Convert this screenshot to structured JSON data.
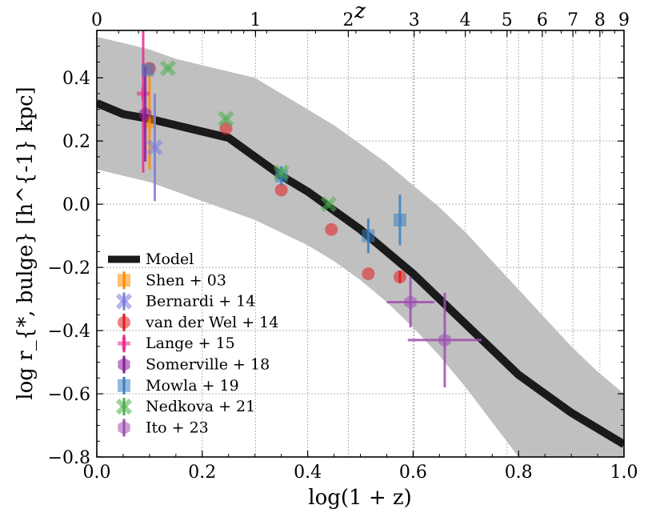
{
  "chart_data": {
    "type": "line",
    "title": "",
    "xlabel": "log(1 + z)",
    "ylabel": "log r_{*, bulge} [h^{-1} kpc]",
    "top_xlabel": "z",
    "xlim": [
      0.0,
      1.0
    ],
    "ylim": [
      -0.8,
      0.55
    ],
    "grid": true,
    "x_ticks": [
      0.0,
      0.2,
      0.4,
      0.6,
      0.8,
      1.0
    ],
    "x_tick_labels": [
      "0.0",
      "0.2",
      "0.4",
      "0.6",
      "0.8",
      "1.0"
    ],
    "y_ticks": [
      -0.8,
      -0.6,
      -0.4,
      -0.2,
      0.0,
      0.2,
      0.4
    ],
    "y_tick_labels": [
      "−0.8",
      "−0.6",
      "−0.4",
      "−0.2",
      "0.0",
      "0.2",
      "0.4"
    ],
    "top_ticks_z": [
      0,
      1,
      2,
      3,
      4,
      5,
      6,
      7,
      8,
      9
    ],
    "top_tick_labels": [
      "0",
      "1",
      "2",
      "3",
      "4",
      "5",
      "6",
      "7",
      "8",
      "9"
    ],
    "legend_location": "lower-left",
    "model": {
      "name": "Model",
      "color": "#1a1a1a",
      "x": [
        0.0,
        0.05,
        0.1,
        0.15,
        0.2,
        0.25,
        0.3,
        0.35,
        0.4,
        0.45,
        0.5,
        0.55,
        0.6,
        0.65,
        0.7,
        0.75,
        0.8,
        0.85,
        0.9,
        0.95,
        1.0
      ],
      "y": [
        0.32,
        0.285,
        0.27,
        0.25,
        0.23,
        0.21,
        0.15,
        0.09,
        0.04,
        -0.02,
        -0.08,
        -0.15,
        -0.22,
        -0.3,
        -0.38,
        -0.46,
        -0.54,
        -0.6,
        -0.66,
        -0.71,
        -0.76
      ],
      "band_upper": [
        0.53,
        0.51,
        0.49,
        0.46,
        0.44,
        0.42,
        0.4,
        0.35,
        0.3,
        0.25,
        0.19,
        0.13,
        0.06,
        -0.01,
        -0.09,
        -0.18,
        -0.27,
        -0.36,
        -0.45,
        -0.53,
        -0.6
      ],
      "band_lower": [
        0.11,
        0.09,
        0.07,
        0.04,
        0.01,
        -0.02,
        -0.05,
        -0.09,
        -0.13,
        -0.18,
        -0.24,
        -0.31,
        -0.39,
        -0.48,
        -0.58,
        -0.69,
        -0.8,
        -0.8,
        -0.8,
        -0.8,
        -0.8
      ]
    },
    "series": [
      {
        "name": "Shen + 03",
        "marker": "square",
        "color": "#ff8c00",
        "points": [
          {
            "x": 0.1,
            "y": 0.26,
            "yerr": 0.15,
            "xerr": 0.0
          }
        ]
      },
      {
        "name": "Bernardi + 14",
        "marker": "x",
        "color": "#7b7bdc",
        "points": [
          {
            "x": 0.11,
            "y": 0.18,
            "yerr": 0.17,
            "xerr": 0.0
          }
        ]
      },
      {
        "name": "van der Wel + 14",
        "marker": "circle",
        "color": "#e31a1c",
        "points": [
          {
            "x": 0.1,
            "y": 0.43,
            "yerr": 0.0,
            "xerr": 0.0
          },
          {
            "x": 0.245,
            "y": 0.24,
            "yerr": 0.0,
            "xerr": 0.0
          },
          {
            "x": 0.35,
            "y": 0.045,
            "yerr": 0.0,
            "xerr": 0.0
          },
          {
            "x": 0.445,
            "y": -0.08,
            "yerr": 0.0,
            "xerr": 0.0
          },
          {
            "x": 0.515,
            "y": -0.22,
            "yerr": 0.0,
            "xerr": 0.0
          },
          {
            "x": 0.575,
            "y": -0.23,
            "yerr": 0.02,
            "xerr": 0.0
          }
        ]
      },
      {
        "name": "Lange + 15",
        "marker": "plus",
        "color": "#e7298a",
        "points": [
          {
            "x": 0.088,
            "y": 0.35,
            "yerr": 0.25,
            "xerr": 0.0
          }
        ]
      },
      {
        "name": "Somerville + 18",
        "marker": "hexagon",
        "color": "#8a1a9b",
        "points": [
          {
            "x": 0.092,
            "y": 0.285,
            "yerr": 0.15,
            "xerr": 0.0
          }
        ]
      },
      {
        "name": "Mowla + 19",
        "marker": "square",
        "color": "#3a7fc1",
        "points": [
          {
            "x": 0.097,
            "y": 0.425,
            "yerr": 0.0,
            "xerr": 0.0
          },
          {
            "x": 0.35,
            "y": 0.09,
            "yerr": 0.03,
            "xerr": 0.0
          },
          {
            "x": 0.515,
            "y": -0.1,
            "yerr": 0.055,
            "xerr": 0.0
          },
          {
            "x": 0.575,
            "y": -0.05,
            "yerr": 0.08,
            "xerr": 0.0
          }
        ]
      },
      {
        "name": "Nedkova + 21",
        "marker": "x",
        "color": "#4daf4a",
        "points": [
          {
            "x": 0.135,
            "y": 0.43,
            "yerr": 0.0,
            "xerr": 0.0
          },
          {
            "x": 0.245,
            "y": 0.27,
            "yerr": 0.0,
            "xerr": 0.0
          },
          {
            "x": 0.35,
            "y": 0.1,
            "yerr": 0.0,
            "xerr": 0.0
          },
          {
            "x": 0.44,
            "y": 0.0,
            "yerr": 0.0,
            "xerr": 0.0
          }
        ]
      },
      {
        "name": "Ito + 23",
        "marker": "hexagon",
        "color": "#9d4fb0",
        "points": [
          {
            "x": 0.595,
            "y": -0.31,
            "yerr": 0.08,
            "xerr": 0.045
          },
          {
            "x": 0.66,
            "y": -0.43,
            "yerr": 0.15,
            "xerr": 0.07
          }
        ]
      }
    ]
  }
}
